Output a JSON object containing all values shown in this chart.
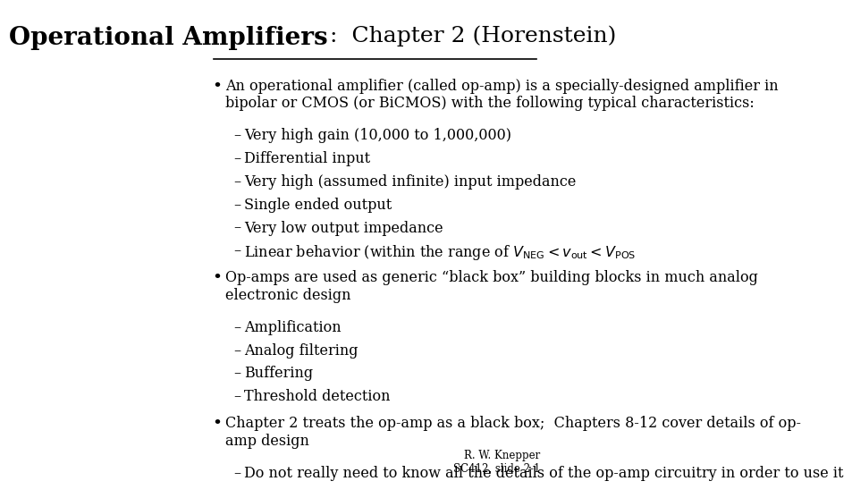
{
  "title_bold": "Operational Amplifiers",
  "title_rest": ":  Chapter 2 (Horenstein)",
  "bg_color": "#ffffff",
  "text_color": "#000000",
  "title_fontsize": 20,
  "body_fontsize": 11.5,
  "sub_fontsize": 11.5,
  "footer_fontsize": 8.5,
  "footer": "R. W. Knepper\nSC412, slide 2-1",
  "bullet1": "An operational amplifier (called op-amp) is a specially-designed amplifier in\nbipolar or CMOS (or BiCMOS) with the following typical characteristics:",
  "sub1": [
    "Very high gain (10,000 to 1,000,000)",
    "Differential input",
    "Very high (assumed infinite) input impedance",
    "Single ended output",
    "Very low output impedance",
    "linear_behavior"
  ],
  "bullet2": "Op-amps are used as generic “black box” building blocks in much analog\nelectronic design",
  "sub2": [
    "Amplification",
    "Analog filtering",
    "Buffering",
    "Threshold detection"
  ],
  "bullet3": "Chapter 2 treats the op-amp as a black box;  Chapters 8-12 cover details of op-\namp design",
  "sub3": [
    "Do not really need to know all the details of the op-amp circuitry in order to use it"
  ]
}
